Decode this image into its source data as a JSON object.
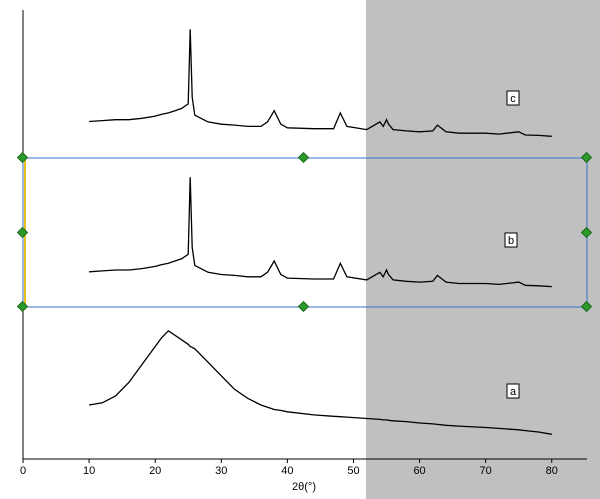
{
  "chart_data": {
    "type": "line",
    "xlabel": "2θ(°)",
    "x": [
      10,
      12,
      14,
      16,
      18,
      20,
      21,
      22,
      23,
      24,
      25,
      25.3,
      25.6,
      26,
      28,
      30,
      32,
      34,
      36,
      37,
      38,
      39,
      40,
      44,
      47,
      48,
      49,
      52,
      54,
      54.5,
      55,
      55.3,
      56,
      58,
      60,
      62,
      62.7,
      64,
      66,
      70,
      72,
      75,
      76,
      78,
      80
    ],
    "xlim": [
      0,
      87.3
    ],
    "xticks": [
      0,
      10,
      20,
      30,
      40,
      50,
      60,
      70,
      80
    ],
    "ylim": [
      0,
      102
    ],
    "series": [
      {
        "name": "a",
        "color": "#000000",
        "values": [
          12,
          12.5,
          14,
          17,
          21,
          25,
          27,
          28.5,
          27.5,
          26.5,
          25.5,
          25,
          24.8,
          24.5,
          21.5,
          18.5,
          15.5,
          13.5,
          12,
          11.5,
          11,
          10.8,
          10.5,
          9.8,
          9.5,
          9.4,
          9.3,
          9,
          8.8,
          8.7,
          8.7,
          8.6,
          8.5,
          8.3,
          8,
          7.8,
          7.7,
          7.5,
          7.3,
          7,
          6.8,
          6.5,
          6.3,
          6,
          5.5
        ]
      },
      {
        "name": "b",
        "color": "#000000",
        "values": [
          41.6,
          41.8,
          42,
          42,
          42.3,
          42.8,
          43.2,
          43.5,
          44,
          44.5,
          45.5,
          62.6,
          47,
          43,
          41.5,
          41,
          40.8,
          40.5,
          40.5,
          41.5,
          44,
          41,
          40.2,
          40,
          40,
          43.5,
          40.5,
          39.8,
          41.5,
          40.5,
          42,
          41,
          39.8,
          39.5,
          39.3,
          39.5,
          40.8,
          39.3,
          39,
          39,
          38.8,
          39.3,
          38.6,
          38.5,
          38.3
        ]
      },
      {
        "name": "c",
        "color": "#000000",
        "values": [
          75,
          75.2,
          75.4,
          75.4,
          75.7,
          76.2,
          76.6,
          76.9,
          77.4,
          77.9,
          78.9,
          95.5,
          80.4,
          76.4,
          74.9,
          74.4,
          74.2,
          73.9,
          73.9,
          74.9,
          77.4,
          74.4,
          73.6,
          73.4,
          73.4,
          76.9,
          73.9,
          73.2,
          74.9,
          73.9,
          75.4,
          74.4,
          73.2,
          72.9,
          72.7,
          72.9,
          74.2,
          72.7,
          72.4,
          72.4,
          72.2,
          72.7,
          72,
          71.9,
          71.7
        ]
      }
    ]
  }
}
